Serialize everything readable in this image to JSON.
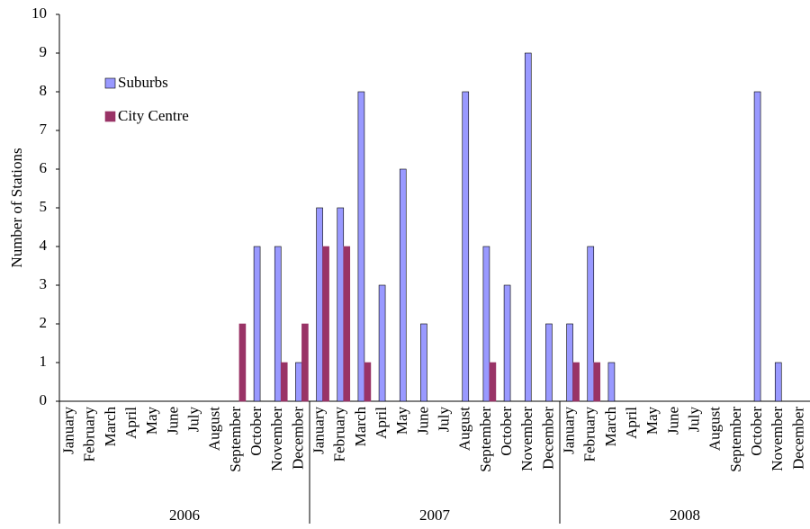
{
  "chart_data": {
    "type": "bar",
    "y_label": "Number of Stations",
    "categories": [
      "January",
      "February",
      "March",
      "April",
      "May",
      "June",
      "July",
      "August",
      "September",
      "October",
      "November",
      "December",
      "January",
      "February",
      "March",
      "April",
      "May",
      "June",
      "July",
      "August",
      "September",
      "October",
      "November",
      "December",
      "January",
      "February",
      "March",
      "April",
      "May",
      "June",
      "July",
      "August",
      "September",
      "October",
      "November",
      "December"
    ],
    "x_groups": [
      "2006",
      "2007",
      "2008"
    ],
    "series": [
      {
        "name": "Suburbs",
        "color": "#9999ff",
        "values": [
          0,
          0,
          0,
          0,
          0,
          0,
          0,
          0,
          0,
          4,
          4,
          1,
          5,
          5,
          8,
          3,
          6,
          2,
          0,
          8,
          4,
          3,
          9,
          2,
          2,
          4,
          1,
          0,
          0,
          0,
          0,
          0,
          0,
          8,
          1,
          0
        ]
      },
      {
        "name": "City Centre",
        "color": "#993366",
        "values": [
          0,
          0,
          0,
          0,
          0,
          0,
          0,
          0,
          2,
          0,
          1,
          2,
          4,
          4,
          1,
          0,
          0,
          0,
          0,
          0,
          1,
          0,
          0,
          0,
          1,
          1,
          0,
          0,
          0,
          0,
          0,
          0,
          0,
          0,
          0,
          0
        ]
      }
    ],
    "ylim": [
      0,
      10
    ],
    "yticks": [
      0,
      1,
      2,
      3,
      4,
      5,
      6,
      7,
      8,
      9,
      10
    ],
    "legend": "upper-left"
  }
}
